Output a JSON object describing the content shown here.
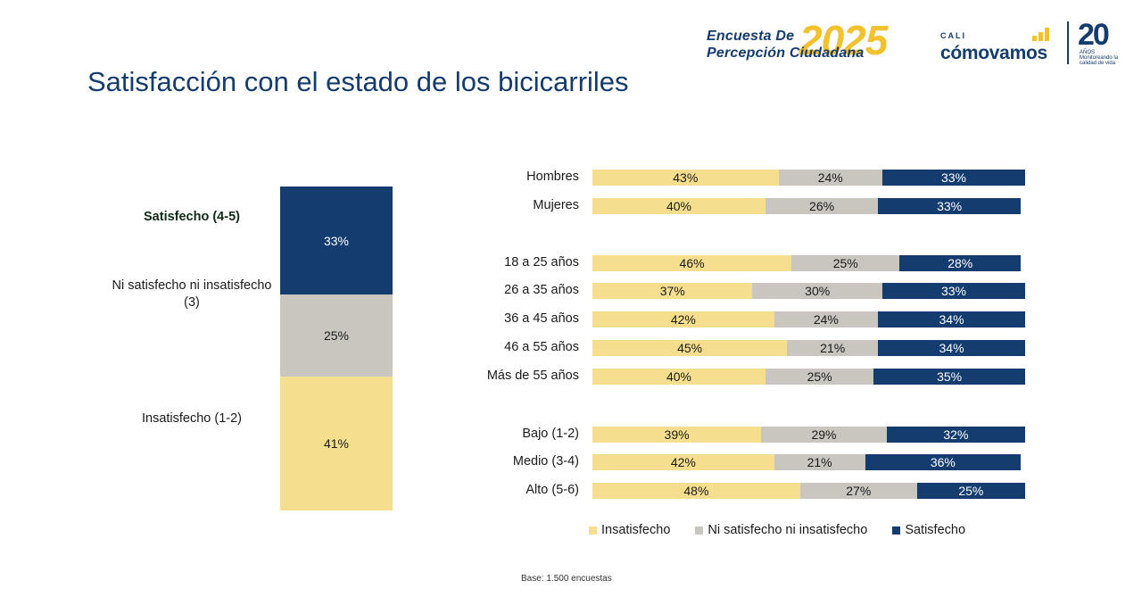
{
  "title": "Satisfacción con el estado de los bicicarriles",
  "branding": {
    "survey_line1": "Encuesta De",
    "survey_line2": "Percepción Ciudadana",
    "survey_year": "2025",
    "org_city": "CALI",
    "org_name": "cómovamos",
    "anniversary_number": "20",
    "anniversary_text": "AÑOS Monitoreando la calidad de vida"
  },
  "colors": {
    "insatisfecho": "#f6de8f",
    "ni": "#c9c6c0",
    "satisfecho": "#143c6e"
  },
  "chart_data": [
    {
      "type": "bar",
      "stacked": true,
      "orientation": "vertical",
      "series": [
        {
          "name": "Insatisfecho (1-2)",
          "value": 41,
          "label": "41%"
        },
        {
          "name": "Ni satisfecho ni insatisfecho (3)",
          "value": 25,
          "label": "25%"
        },
        {
          "name": "Satisfecho (4-5)",
          "value": 33,
          "label": "33%"
        }
      ]
    },
    {
      "type": "bar",
      "stacked": true,
      "orientation": "horizontal",
      "categories": [
        "Hombres",
        "Mujeres",
        "18 a 25 años",
        "26 a 35 años",
        "36 a 45 años",
        "46 a 55 años",
        "Más de 55 años",
        "Bajo (1-2)",
        "Medio (3-4)",
        "Alto (5-6)"
      ],
      "series": [
        {
          "name": "Insatisfecho",
          "values": [
            43,
            40,
            46,
            37,
            42,
            45,
            40,
            39,
            42,
            48
          ]
        },
        {
          "name": "Ni satisfecho ni insatisfecho",
          "values": [
            24,
            26,
            25,
            30,
            24,
            21,
            25,
            29,
            21,
            27
          ]
        },
        {
          "name": "Satisfecho",
          "values": [
            33,
            33,
            28,
            33,
            34,
            34,
            35,
            32,
            36,
            25
          ]
        }
      ],
      "legend": "bottom"
    }
  ],
  "footnote": "Base: 1.500 encuestas"
}
